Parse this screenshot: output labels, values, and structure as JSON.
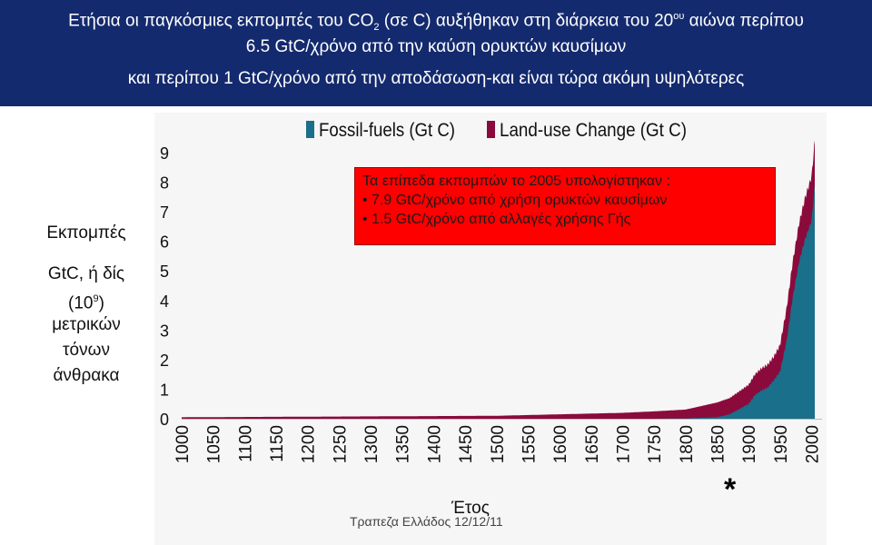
{
  "header": {
    "line1_pre": "Ετήσια οι παγκόσμιες εκπομπές του CO",
    "line1_sub": "2",
    "line1_mid": " (σε C) αυξήθηκαν στη διάρκεια του 20",
    "line1_sup": "ου",
    "line1_post": " αιώνα περίπου",
    "line2": "6.5 GtC/χρόνο από την καύση ορυκτών καυσίμων",
    "line3": "και περίπου 1 GtC/χρόνο από την αποδάσωση-και είναι τώρα ακόμη υψηλότερες"
  },
  "ylabel": {
    "line1": "Εκπομπές",
    "line2": "GtC, ή δίς",
    "line3_pre": "(10",
    "line3_sup": "9",
    "line3_post": ")",
    "line4": "μετρικών",
    "line5": "τόνων",
    "line6": "άνθρακα"
  },
  "info_box": {
    "title": "Τα επίπεδα εκπομπών το 2005 υπολογίστηκαν :",
    "items": [
      "• 7.9 GtC/χρόνο από χρήση ορυκτών καυσίμων",
      "• 1.5 GtC/χρόνο από αλλαγές χρήσης Γής"
    ]
  },
  "xlabel": "Έτος",
  "footer": "Τραπεζα Ελλάδος 12/12/11",
  "asterisk": "*",
  "colors": {
    "header_bg": "#142a6e",
    "fossil": "#1a6f8a",
    "landuse": "#8b0a3c",
    "box": "#ff0000"
  },
  "chart_data": {
    "type": "area",
    "stacked": true,
    "legend_position": "top",
    "xlim": [
      1000,
      2005
    ],
    "ylim": [
      0,
      9
    ],
    "x_ticks": [
      1000,
      1050,
      1100,
      1150,
      1200,
      1250,
      1300,
      1350,
      1400,
      1450,
      1500,
      1550,
      1600,
      1650,
      1700,
      1750,
      1800,
      1850,
      1900,
      1950,
      2000
    ],
    "y_ticks": [
      0,
      1,
      2,
      3,
      4,
      5,
      6,
      7,
      8,
      9
    ],
    "series": [
      {
        "name": "Fossil-fuels (Gt C)",
        "color": "#1a6f8a",
        "points": [
          [
            1000,
            0
          ],
          [
            1750,
            0
          ],
          [
            1800,
            0.01
          ],
          [
            1850,
            0.05
          ],
          [
            1870,
            0.15
          ],
          [
            1900,
            0.5
          ],
          [
            1910,
            0.8
          ],
          [
            1920,
            0.95
          ],
          [
            1930,
            1.05
          ],
          [
            1940,
            1.3
          ],
          [
            1950,
            1.6
          ],
          [
            1960,
            2.6
          ],
          [
            1970,
            4.1
          ],
          [
            1980,
            5.3
          ],
          [
            1990,
            6.1
          ],
          [
            2000,
            6.7
          ],
          [
            2005,
            7.9
          ]
        ]
      },
      {
        "name": "Land-use Change (Gt C)",
        "color": "#8b0a3c",
        "points": [
          [
            1000,
            0.05
          ],
          [
            1500,
            0.1
          ],
          [
            1600,
            0.15
          ],
          [
            1700,
            0.2
          ],
          [
            1750,
            0.25
          ],
          [
            1800,
            0.3
          ],
          [
            1850,
            0.5
          ],
          [
            1870,
            0.55
          ],
          [
            1900,
            0.65
          ],
          [
            1920,
            0.75
          ],
          [
            1940,
            0.8
          ],
          [
            1950,
            0.9
          ],
          [
            1960,
            1.1
          ],
          [
            1970,
            1.2
          ],
          [
            1980,
            1.3
          ],
          [
            1990,
            1.4
          ],
          [
            2000,
            1.5
          ],
          [
            2005,
            1.5
          ]
        ]
      }
    ]
  }
}
